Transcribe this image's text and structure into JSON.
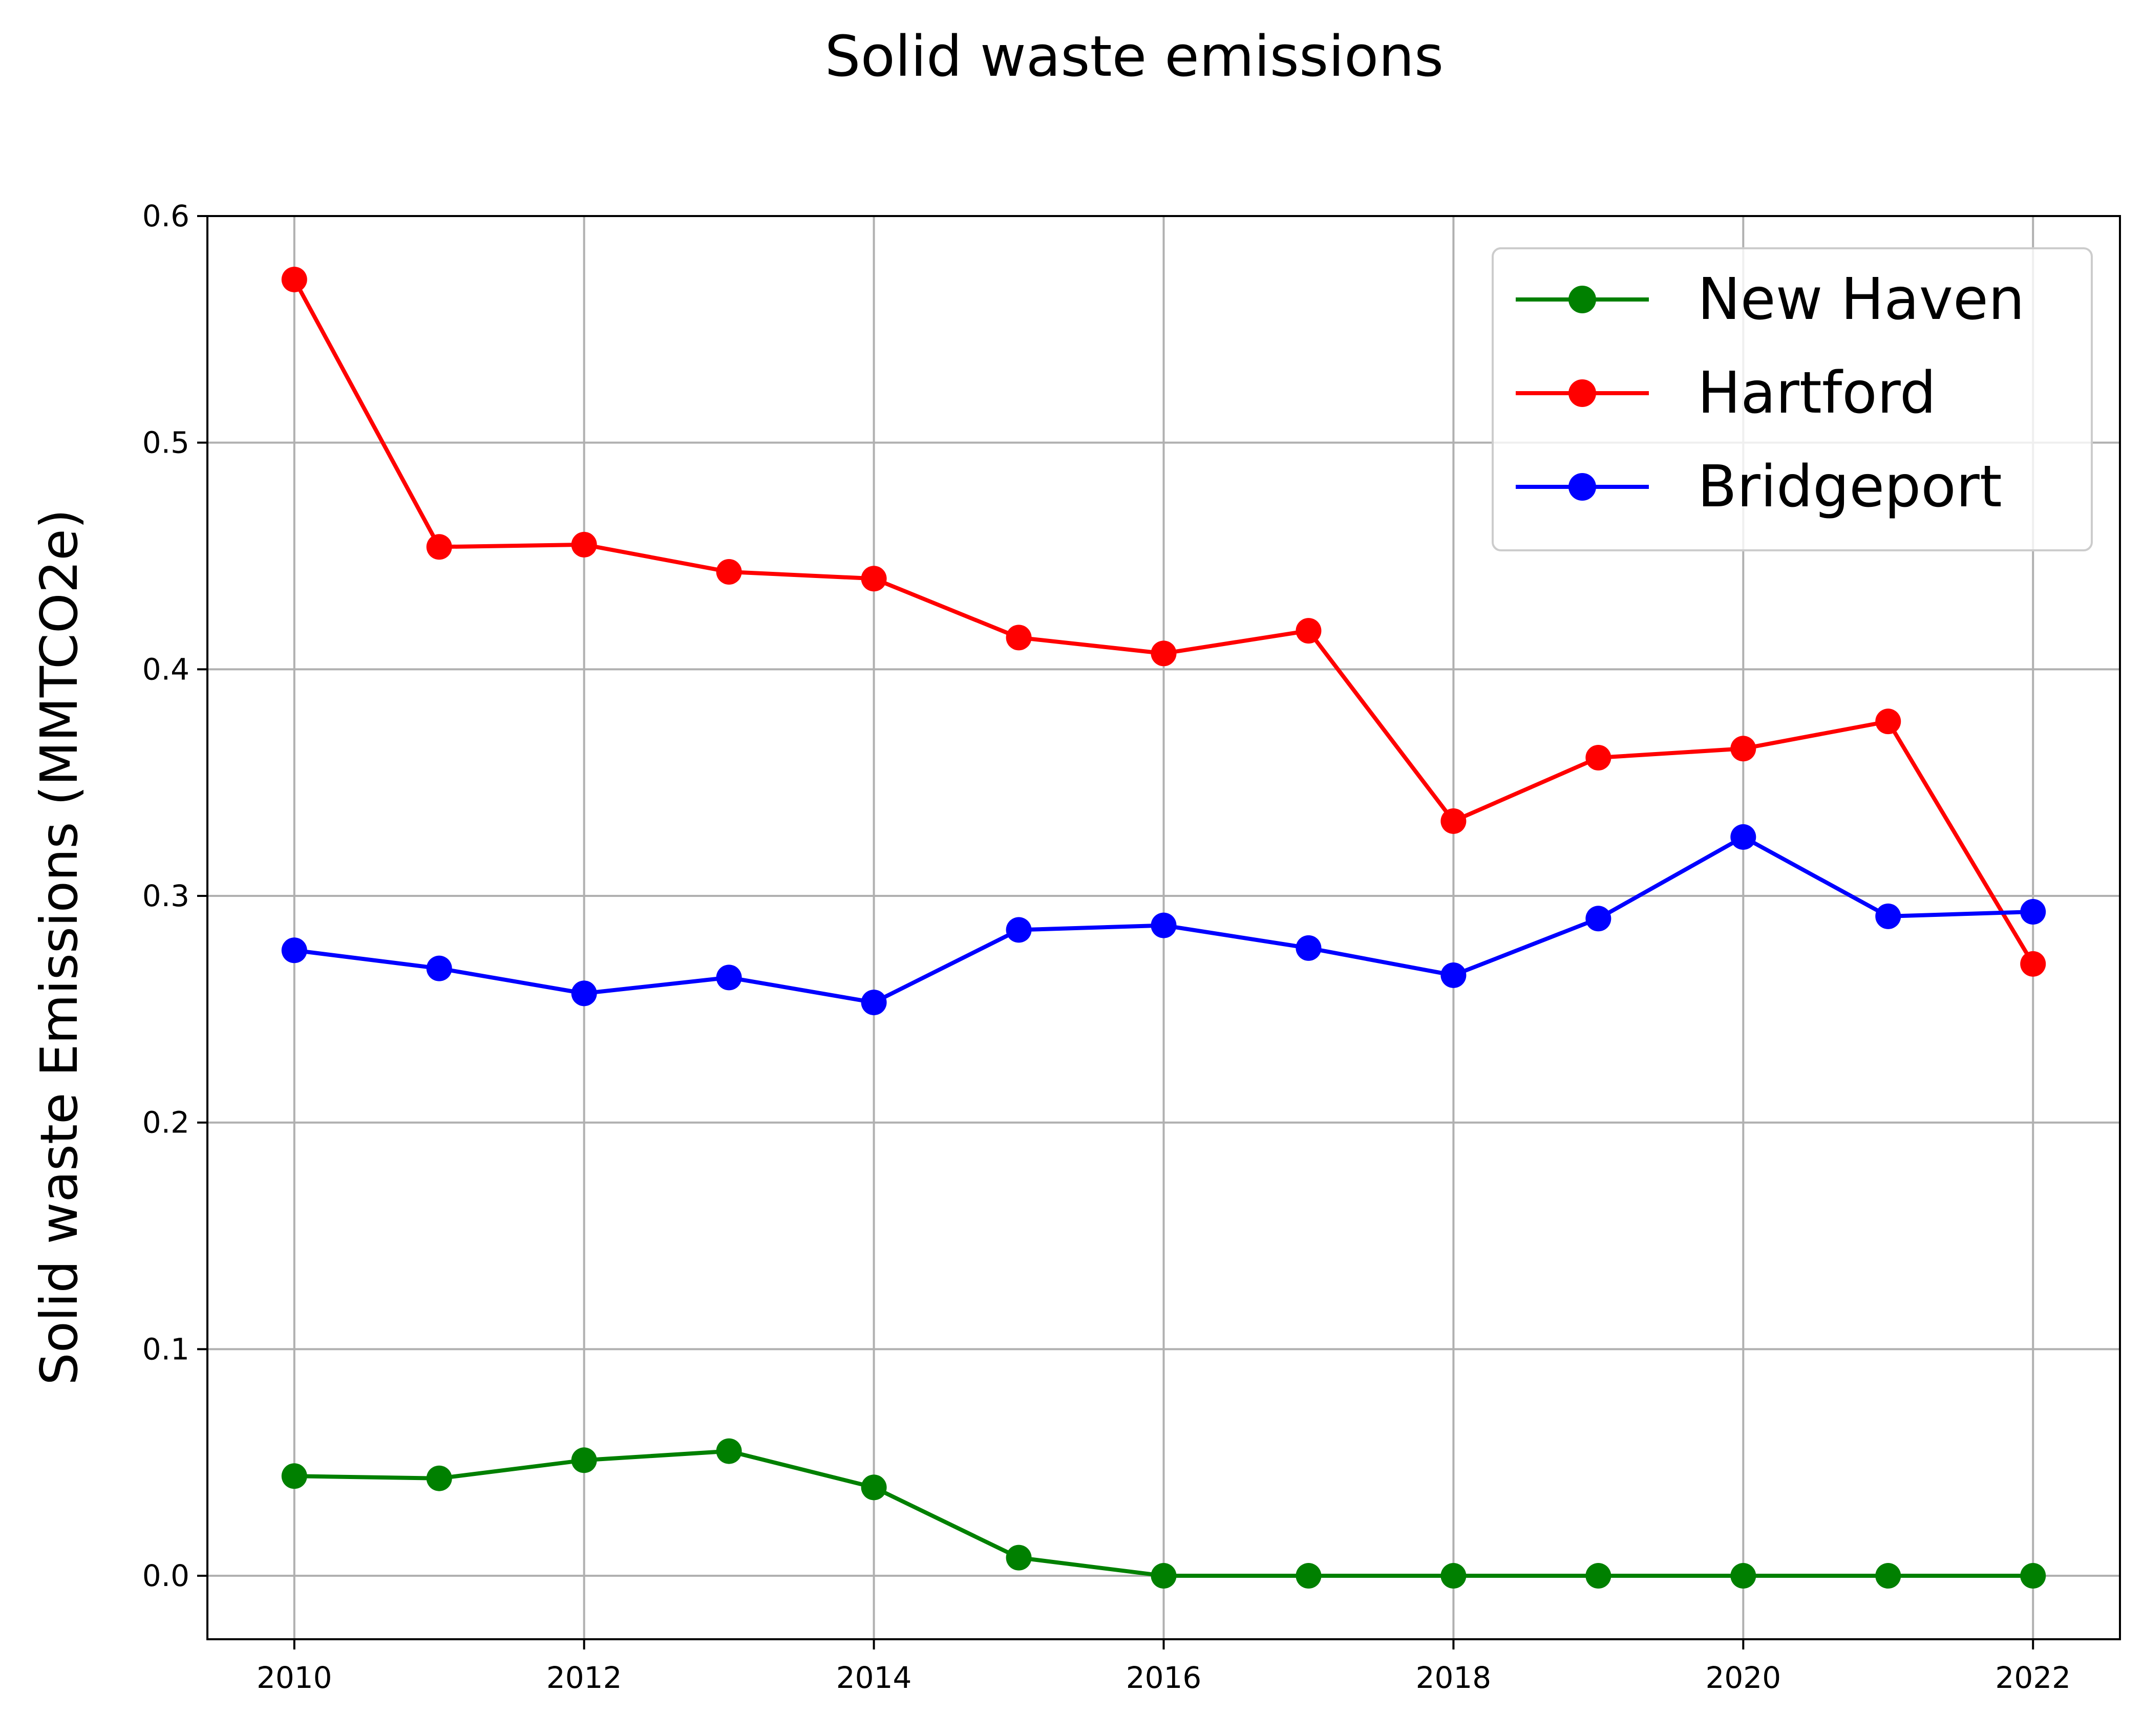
{
  "chart_data": {
    "type": "line",
    "title": "Solid waste emissions",
    "xlabel": "",
    "ylabel": "Solid waste Emissions (MMTCO2e)",
    "x": [
      2010,
      2011,
      2012,
      2013,
      2014,
      2015,
      2016,
      2017,
      2018,
      2019,
      2020,
      2021,
      2022
    ],
    "xticks": [
      "2010",
      "2012",
      "2014",
      "2016",
      "2018",
      "2020",
      "2022"
    ],
    "yticks": [
      "0.0",
      "0.1",
      "0.2",
      "0.3",
      "0.4",
      "0.5",
      "0.6"
    ],
    "xlim": [
      2009.4,
      2022.6
    ],
    "ylim": [
      -0.028,
      0.6
    ],
    "grid": true,
    "legend_position": "top-right",
    "series": [
      {
        "name": "New Haven",
        "color": "#008000",
        "values": [
          0.044,
          0.043,
          0.051,
          0.055,
          0.039,
          0.008,
          0.0,
          0.0,
          0.0,
          0.0,
          0.0,
          0.0,
          0.0
        ]
      },
      {
        "name": "Hartford",
        "color": "#ff0000",
        "values": [
          0.572,
          0.454,
          0.455,
          0.443,
          0.44,
          0.414,
          0.407,
          0.417,
          0.333,
          0.361,
          0.365,
          0.377,
          0.27
        ]
      },
      {
        "name": "Bridgeport",
        "color": "#0000ff",
        "values": [
          0.276,
          0.268,
          0.257,
          0.264,
          0.253,
          0.285,
          0.287,
          0.277,
          0.265,
          0.29,
          0.326,
          0.291,
          0.293
        ]
      }
    ]
  }
}
